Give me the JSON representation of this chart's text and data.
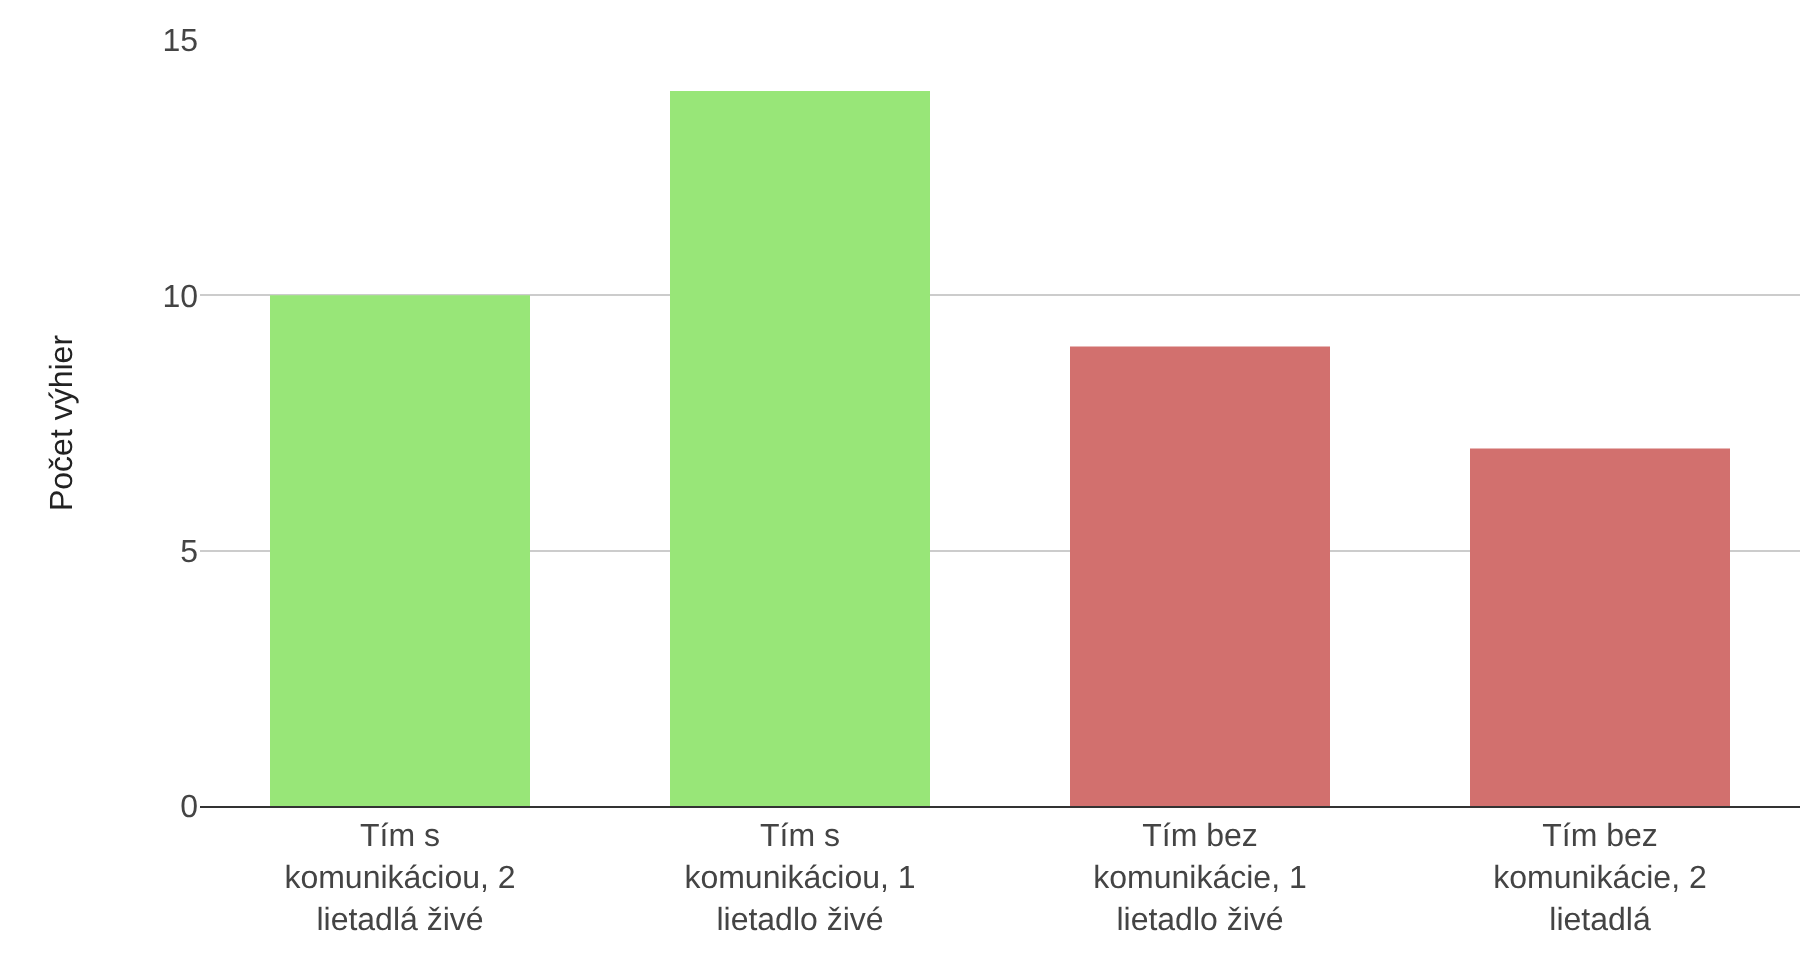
{
  "chart_data": {
    "type": "bar",
    "ylabel": "Počet výhier",
    "categories": [
      "Tím s komunikáciou, 2 lietadlá živé",
      "Tím s komunikáciou, 1 lietadlo živé",
      "Tím bez komunikácie, 1 lietadlo živé",
      "Tím bez komunikácie, 2 lietadlá"
    ],
    "values": [
      10,
      14,
      9,
      7
    ],
    "colors": [
      "#98e678",
      "#98e678",
      "#d2706e",
      "#d2706e"
    ],
    "ylim": [
      0,
      15
    ],
    "yticks": [
      0,
      5,
      10,
      15
    ],
    "grid": "y"
  }
}
